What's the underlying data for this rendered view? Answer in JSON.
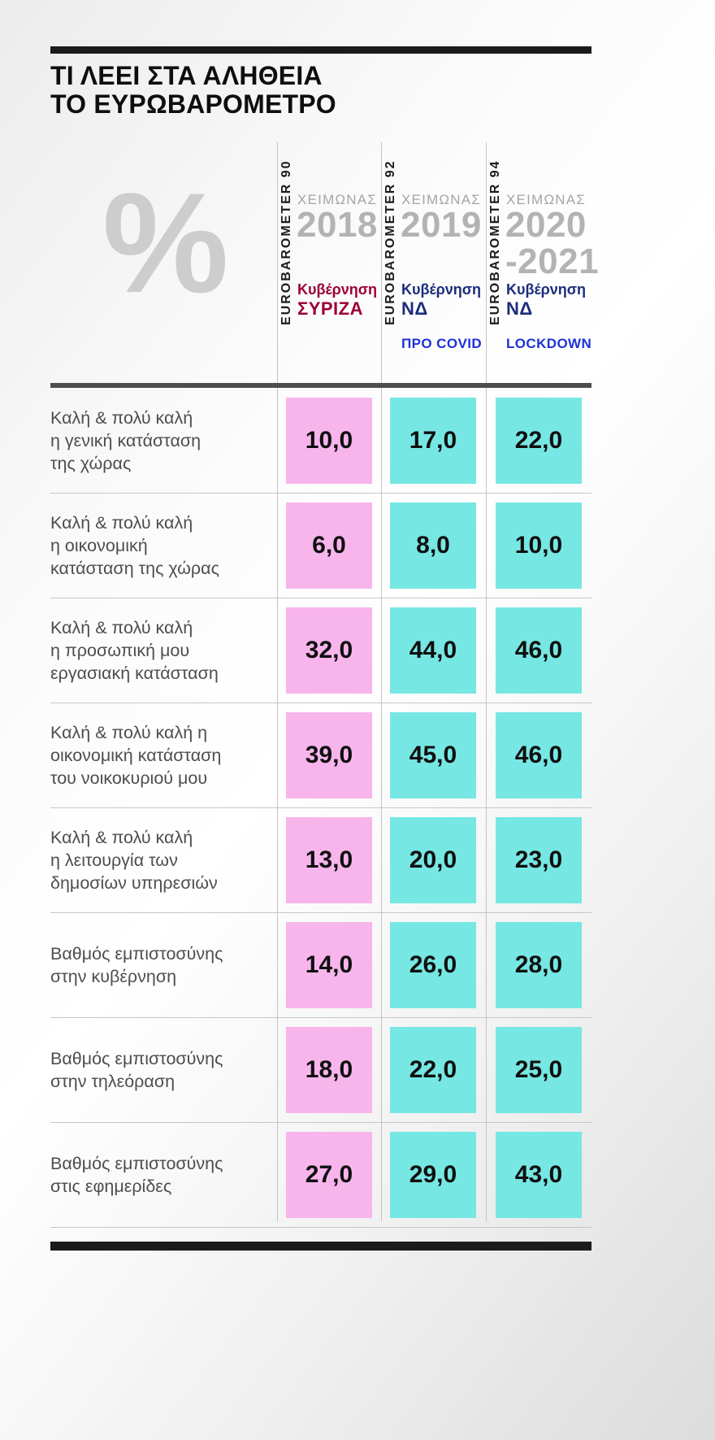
{
  "title": {
    "line1": "ΤΙ ΛΕΕΙ ΣΤΑ ΑΛΗΘΕΙΑ",
    "line2": "ΤΟ ΕΥΡΩΒΑΡΟΜΕΤΡΟ"
  },
  "percent_symbol": "%",
  "header": {
    "columns": [
      {
        "barometer": "EUROBAROMETER 90",
        "season": "ΧΕΙΜΩΝΑΣ",
        "year": "2018",
        "gov_label": "Κυβέρνηση",
        "gov_party": "ΣΥΡΙΖΑ",
        "phase": ""
      },
      {
        "barometer": "EUROBAROMETER 92",
        "season": "ΧΕΙΜΩΝΑΣ",
        "year": "2019",
        "gov_label": "Κυβέρνηση",
        "gov_party": "ΝΔ",
        "phase": "ΠΡΟ COVID"
      },
      {
        "barometer": "EUROBAROMETER 94",
        "season": "ΧΕΙΜΩΝΑΣ",
        "year": "2020\n-2021",
        "gov_label": "Κυβέρνηση",
        "gov_party": "ΝΔ",
        "phase": "LOCKDOWN"
      }
    ]
  },
  "table": {
    "rows": [
      {
        "label": "Καλή & πολύ καλή\nη γενική κατάσταση\nτης χώρας",
        "values": [
          "10,0",
          "17,0",
          "22,0"
        ]
      },
      {
        "label": "Καλή & πολύ καλή\nη οικονομική\nκατάσταση της χώρας",
        "values": [
          "6,0",
          "8,0",
          "10,0"
        ]
      },
      {
        "label": "Καλή & πολύ καλή\nη προσωπική μου\nεργασιακή κατάσταση",
        "values": [
          "32,0",
          "44,0",
          "46,0"
        ]
      },
      {
        "label": "Καλή & πολύ καλή η\nοικονομική κατάσταση\nτου νοικοκυριού μου",
        "values": [
          "39,0",
          "45,0",
          "46,0"
        ]
      },
      {
        "label": "Καλή & πολύ καλή\nη λειτουργία των\nδημοσίων υπηρεσιών",
        "values": [
          "13,0",
          "20,0",
          "23,0"
        ]
      },
      {
        "label": "Βαθμός εμπιστοσύνης\nστην κυβέρνηση",
        "values": [
          "14,0",
          "26,0",
          "28,0"
        ]
      },
      {
        "label": "Βαθμός εμπιστοσύνης\nστην τηλεόραση",
        "values": [
          "18,0",
          "22,0",
          "25,0"
        ]
      },
      {
        "label": "Βαθμός εμπιστοσύνης\nστις εφημερίδες",
        "values": [
          "27,0",
          "29,0",
          "43,0"
        ]
      }
    ]
  },
  "colors": {
    "pink": "#f8b5ec",
    "cyan": "#76e7e3",
    "syriza": "#9c0036",
    "nd": "#1c2d7a",
    "phase-blue": "#1e32d8",
    "bar-black": "#1b1b1b"
  },
  "chart_data": {
    "type": "table",
    "title": "ΤΙ ΛΕΕΙ ΣΤΑ ΑΛΗΘΕΙΑ ΤΟ ΕΥΡΩΒΑΡΟΜΕΤΡΟ",
    "unit": "%",
    "columns": [
      "EUROBAROMETER 90 / ΧΕΙΜΩΝΑΣ 2018 / Κυβέρνηση ΣΥΡΙΖΑ",
      "EUROBAROMETER 92 / ΧΕΙΜΩΝΑΣ 2019 / Κυβέρνηση ΝΔ / ΠΡΟ COVID",
      "EUROBAROMETER 94 / ΧΕΙΜΩΝΑΣ 2020-2021 / Κυβέρνηση ΝΔ / LOCKDOWN"
    ],
    "rows": [
      {
        "label": "Καλή & πολύ καλή η γενική κατάσταση της χώρας",
        "values": [
          10.0,
          17.0,
          22.0
        ]
      },
      {
        "label": "Καλή & πολύ καλή η οικονομική κατάσταση της χώρας",
        "values": [
          6.0,
          8.0,
          10.0
        ]
      },
      {
        "label": "Καλή & πολύ καλή η προσωπική μου εργασιακή κατάσταση",
        "values": [
          32.0,
          44.0,
          46.0
        ]
      },
      {
        "label": "Καλή & πολύ καλή η οικονομική κατάσταση του νοικοκυριού μου",
        "values": [
          39.0,
          45.0,
          46.0
        ]
      },
      {
        "label": "Καλή & πολύ καλή η λειτουργία των δημοσίων υπηρεσιών",
        "values": [
          13.0,
          20.0,
          23.0
        ]
      },
      {
        "label": "Βαθμός εμπιστοσύνης στην κυβέρνηση",
        "values": [
          14.0,
          26.0,
          28.0
        ]
      },
      {
        "label": "Βαθμός εμπιστοσύνης στην τηλεόραση",
        "values": [
          18.0,
          22.0,
          25.0
        ]
      },
      {
        "label": "Βαθμός εμπιστοσύνης στις εφημερίδες",
        "values": [
          27.0,
          29.0,
          43.0
        ]
      }
    ]
  }
}
